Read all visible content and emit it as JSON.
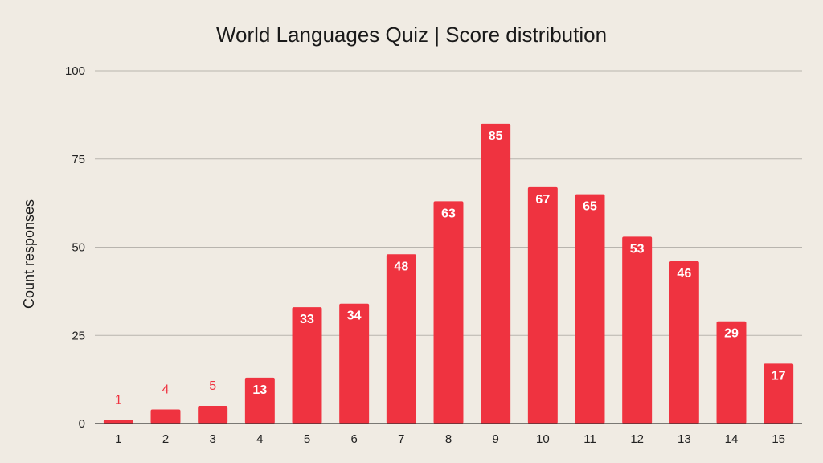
{
  "colors": {
    "background": "#f0ebe3",
    "bar": "#ef3340",
    "grid": "#b8b4ae",
    "axis": "#333333"
  },
  "chart_data": {
    "type": "bar",
    "title": "World Languages Quiz | Score distribution",
    "xlabel": "",
    "ylabel": "Count responses",
    "categories": [
      "1",
      "2",
      "3",
      "4",
      "5",
      "6",
      "7",
      "8",
      "9",
      "10",
      "11",
      "12",
      "13",
      "14",
      "15"
    ],
    "values": [
      1,
      4,
      5,
      13,
      33,
      34,
      48,
      63,
      85,
      67,
      65,
      53,
      46,
      29,
      17
    ],
    "data_labels": [
      "1",
      "4",
      "5",
      "13",
      "33",
      "34",
      "48",
      "63",
      "85",
      "67",
      "65",
      "53",
      "46",
      "29",
      "17"
    ],
    "ylim": [
      0,
      100
    ],
    "yticks": [
      0,
      25,
      50,
      75,
      100
    ],
    "ytick_labels": [
      "0",
      "25",
      "50",
      "75",
      "100"
    ],
    "grid": true,
    "legend": "none"
  }
}
